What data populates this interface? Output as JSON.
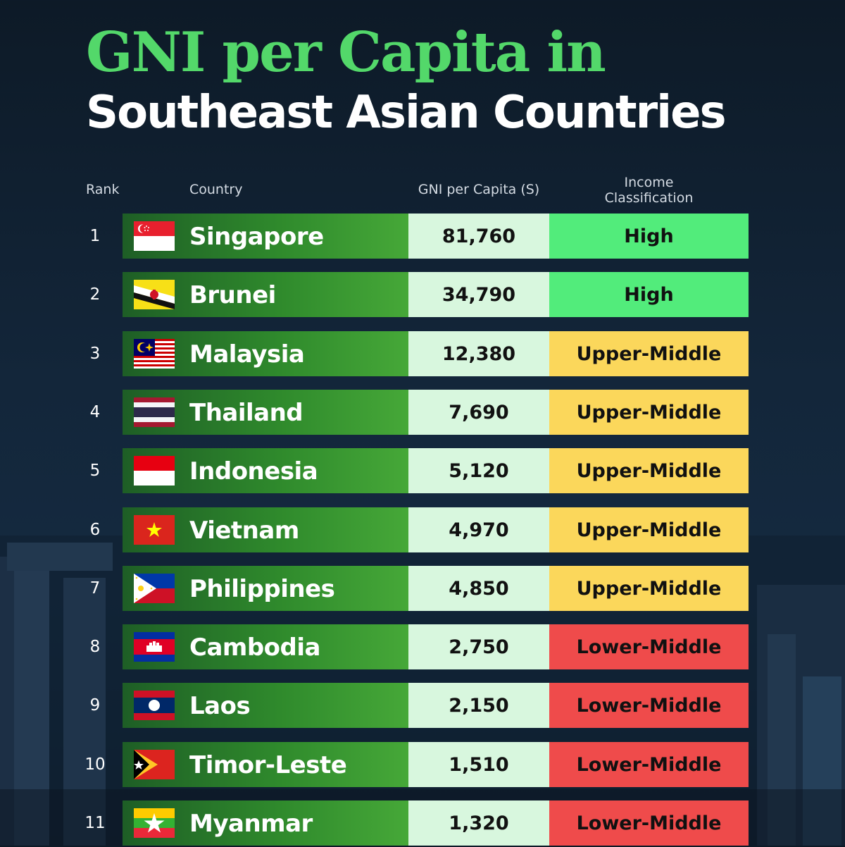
{
  "title": {
    "line1": "GNI per Capita in",
    "line2": "Southeast Asian Countries"
  },
  "headers": {
    "rank": "Rank",
    "country": "Country",
    "gni": "GNI per Capita (S)",
    "income_line1": "Income",
    "income_line2": "Classification"
  },
  "colors": {
    "title_green": "#53d86a",
    "high": "#52ec7b",
    "upper_middle": "#fbd75b",
    "lower_middle": "#ef4b4b",
    "gni_cell": "#d8f7de"
  },
  "chart_data": {
    "type": "table",
    "columns": [
      "Rank",
      "Country",
      "GNI per Capita (S)",
      "Income Classification"
    ],
    "rows": [
      {
        "rank": "1",
        "country": "Singapore",
        "gni": "81,760",
        "income": "High",
        "flag": "singapore-flag-icon"
      },
      {
        "rank": "2",
        "country": "Brunei",
        "gni": "34,790",
        "income": "High",
        "flag": "brunei-flag-icon"
      },
      {
        "rank": "3",
        "country": "Malaysia",
        "gni": "12,380",
        "income": "Upper-Middle",
        "flag": "malaysia-flag-icon"
      },
      {
        "rank": "4",
        "country": "Thailand",
        "gni": "7,690",
        "income": "Upper-Middle",
        "flag": "thailand-flag-icon"
      },
      {
        "rank": "5",
        "country": "Indonesia",
        "gni": "5,120",
        "income": "Upper-Middle",
        "flag": "indonesia-flag-icon"
      },
      {
        "rank": "6",
        "country": "Vietnam",
        "gni": "4,970",
        "income": "Upper-Middle",
        "flag": "vietnam-flag-icon"
      },
      {
        "rank": "7",
        "country": "Philippines",
        "gni": "4,850",
        "income": "Upper-Middle",
        "flag": "philippines-flag-icon"
      },
      {
        "rank": "8",
        "country": "Cambodia",
        "gni": "2,750",
        "income": "Lower-Middle",
        "flag": "cambodia-flag-icon"
      },
      {
        "rank": "9",
        "country": "Laos",
        "gni": "2,150",
        "income": "Lower-Middle",
        "flag": "laos-flag-icon"
      },
      {
        "rank": "10",
        "country": "Timor-Leste",
        "gni": "1,510",
        "income": "Lower-Middle",
        "flag": "timor-leste-flag-icon"
      },
      {
        "rank": "11",
        "country": "Myanmar",
        "gni": "1,320",
        "income": "Lower-Middle",
        "flag": "myanmar-flag-icon"
      }
    ]
  }
}
